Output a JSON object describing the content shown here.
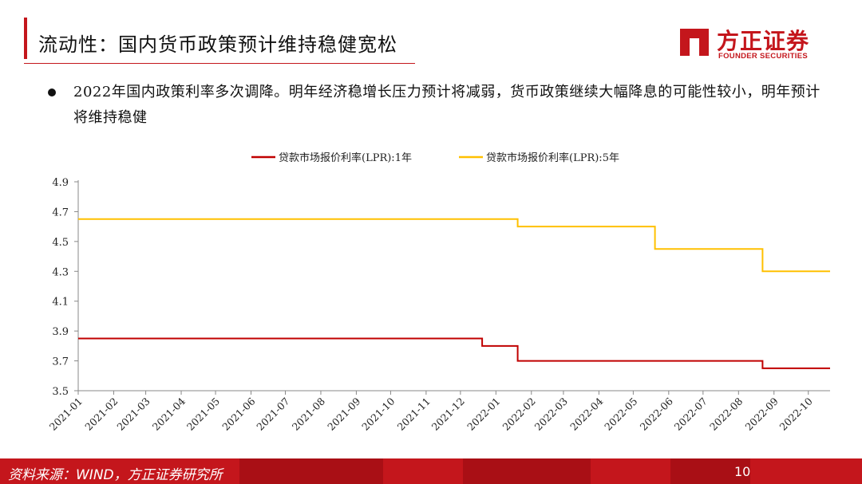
{
  "header": {
    "title": "流动性：国内货币政策预计维持稳健宽松"
  },
  "logo": {
    "name_cn": "方正证券",
    "name_en": "FOUNDER SECURITIES",
    "brand_color": "#c4161c"
  },
  "bullet": {
    "text": "2022年国内政策利率多次调降。明年经济稳增长压力预计将减弱，货币政策继续大幅降息的可能性较小，明年预计将维持稳健"
  },
  "footer": {
    "source": "资料来源：WIND，方正证券研究所",
    "page": "10"
  },
  "chart_data": {
    "type": "line",
    "x_tick_labels": [
      "2021-01",
      "2021-02",
      "2021-03",
      "2021-04",
      "2021-05",
      "2021-06",
      "2021-07",
      "2021-08",
      "2021-09",
      "2021-10",
      "2021-11",
      "2021-12",
      "2022-01",
      "2022-02",
      "2022-03",
      "2022-04",
      "2022-05",
      "2022-06",
      "2022-07",
      "2022-08",
      "2022-09",
      "2022-10"
    ],
    "ylim": [
      3.5,
      4.9
    ],
    "y_ticks": [
      "3.5",
      "3.7",
      "3.9",
      "4.1",
      "4.3",
      "4.5",
      "4.7",
      "4.9"
    ],
    "legend_position": "top-center",
    "grid": false,
    "series": [
      {
        "name": "贷款市场报价利率(LPR):1年",
        "color": "#c00000",
        "points": [
          {
            "x": "2021-01",
            "y": 3.85
          },
          {
            "x": "2021-12-20",
            "y": 3.85
          },
          {
            "x": "2021-12-20",
            "y": 3.8
          },
          {
            "x": "2022-01-20",
            "y": 3.8
          },
          {
            "x": "2022-01-20",
            "y": 3.7
          },
          {
            "x": "2022-08-22",
            "y": 3.7
          },
          {
            "x": "2022-08-22",
            "y": 3.65
          },
          {
            "x": "2022-10-20",
            "y": 3.65
          }
        ]
      },
      {
        "name": "贷款市场报价利率(LPR):5年",
        "color": "#ffc000",
        "points": [
          {
            "x": "2021-01",
            "y": 4.65
          },
          {
            "x": "2022-01-20",
            "y": 4.65
          },
          {
            "x": "2022-01-20",
            "y": 4.6
          },
          {
            "x": "2022-05-20",
            "y": 4.6
          },
          {
            "x": "2022-05-20",
            "y": 4.45
          },
          {
            "x": "2022-08-22",
            "y": 4.45
          },
          {
            "x": "2022-08-22",
            "y": 4.3
          },
          {
            "x": "2022-10-20",
            "y": 4.3
          }
        ]
      }
    ]
  }
}
